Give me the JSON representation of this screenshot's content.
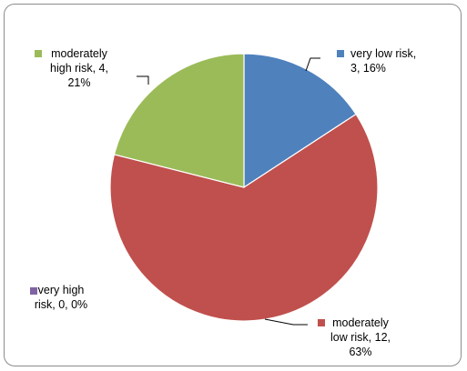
{
  "chart_data": {
    "type": "pie",
    "title": "",
    "categories": [
      "very low risk",
      "moderately low risk",
      "very high risk",
      "moderately high risk"
    ],
    "values": [
      3,
      12,
      0,
      4
    ],
    "percents": [
      "16%",
      "63%",
      "0%",
      "21%"
    ],
    "colors": [
      "#4F81BD",
      "#C0504D",
      "#8064A2",
      "#9BBB59"
    ],
    "legend": "none",
    "data_labels": [
      {
        "series": "very low risk",
        "lines": [
          "very low risk,",
          "3, 16%"
        ]
      },
      {
        "series": "moderately low risk",
        "lines": [
          "moderately",
          "low risk, 12,",
          "63%"
        ]
      },
      {
        "series": "very high risk",
        "lines": [
          "very high",
          "risk, 0, 0%"
        ]
      },
      {
        "series": "moderately high risk",
        "lines": [
          "moderately",
          "high risk, 4,",
          "21%"
        ]
      }
    ]
  }
}
